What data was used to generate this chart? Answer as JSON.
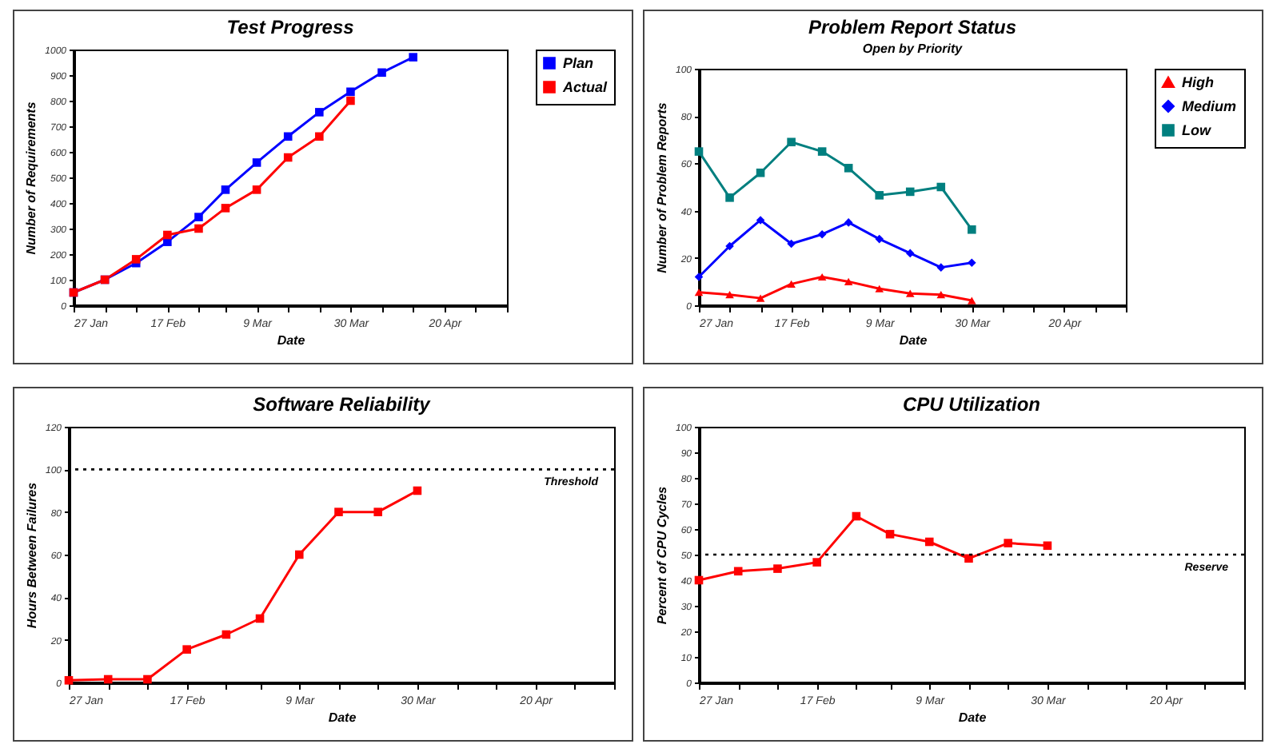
{
  "chart_data": [
    {
      "type": "line",
      "title": "Test Progress",
      "xlabel": "Date",
      "ylabel": "Number of Requirements",
      "legend": "right",
      "marker": "square",
      "x": [
        "--01-27",
        "--02-03",
        "--02-10",
        "--02-17",
        "--02-24",
        "--03-02",
        "--03-09",
        "--03-16",
        "--03-23",
        "--03-30",
        "--04-06",
        "--04-13"
      ],
      "xlim": [
        "--01-27",
        "--05-04"
      ],
      "xticks": [
        {
          "value": "--01-27",
          "label": "27 Jan"
        },
        {
          "value": "--02-03",
          "label": null
        },
        {
          "value": "--02-10",
          "label": null
        },
        {
          "value": "--02-17",
          "label": "17 Feb"
        },
        {
          "value": "--02-24",
          "label": null
        },
        {
          "value": "--03-02",
          "label": null
        },
        {
          "value": "--03-09",
          "label": "9 Mar"
        },
        {
          "value": "--03-16",
          "label": null
        },
        {
          "value": "--03-23",
          "label": null
        },
        {
          "value": "--03-30",
          "label": "30 Mar"
        },
        {
          "value": "--04-06",
          "label": null
        },
        {
          "value": "--04-13",
          "label": null
        },
        {
          "value": "--04-20",
          "label": "20 Apr"
        },
        {
          "value": "--04-27",
          "label": null
        },
        {
          "value": "--05-04",
          "label": null
        }
      ],
      "ylim": [
        0,
        1000
      ],
      "yticks": [
        0,
        100,
        200,
        300,
        400,
        500,
        600,
        700,
        800,
        900,
        1000
      ],
      "series": [
        {
          "name": "Plan",
          "color": "#0000ff",
          "values": [
            50,
            100,
            165,
            248,
            345,
            452,
            558,
            660,
            755,
            835,
            910,
            970
          ]
        },
        {
          "name": "Actual",
          "color": "#ff0000",
          "values": [
            50,
            100,
            180,
            275,
            300,
            380,
            452,
            578,
            660,
            800,
            null,
            null
          ]
        }
      ]
    },
    {
      "type": "line",
      "title": "Problem Report Status",
      "subtitle": "Open by Priority",
      "xlabel": "Date",
      "ylabel": "Number of Problem Reports",
      "legend": "right",
      "x": [
        "--01-27",
        "--02-03",
        "--02-10",
        "--02-17",
        "--02-24",
        "--03-02",
        "--03-09",
        "--03-16",
        "--03-23",
        "--03-30"
      ],
      "xlim": [
        "--01-27",
        "--05-04"
      ],
      "xticks": [
        {
          "value": "--01-27",
          "label": "27 Jan"
        },
        {
          "value": "--02-03",
          "label": null
        },
        {
          "value": "--02-10",
          "label": null
        },
        {
          "value": "--02-17",
          "label": "17 Feb"
        },
        {
          "value": "--02-24",
          "label": null
        },
        {
          "value": "--03-02",
          "label": null
        },
        {
          "value": "--03-09",
          "label": "9 Mar"
        },
        {
          "value": "--03-16",
          "label": null
        },
        {
          "value": "--03-23",
          "label": null
        },
        {
          "value": "--03-30",
          "label": "30 Mar"
        },
        {
          "value": "--04-06",
          "label": null
        },
        {
          "value": "--04-13",
          "label": null
        },
        {
          "value": "--04-20",
          "label": "20 Apr"
        },
        {
          "value": "--04-27",
          "label": null
        },
        {
          "value": "--05-04",
          "label": null
        }
      ],
      "ylim": [
        0,
        100
      ],
      "yticks": [
        0,
        20,
        40,
        60,
        80,
        100
      ],
      "series": [
        {
          "name": "High",
          "color": "#ff0000",
          "marker": "triangle",
          "values": [
            5.5,
            4.5,
            3,
            9,
            12,
            10,
            7,
            5,
            4.5,
            2
          ]
        },
        {
          "name": "Medium",
          "color": "#0000ff",
          "marker": "diamond",
          "values": [
            12,
            25,
            36,
            26,
            30,
            35,
            28,
            22,
            16,
            18
          ]
        },
        {
          "name": "Low",
          "color": "#007f7f",
          "marker": "square",
          "values": [
            65,
            45.5,
            56,
            69,
            65,
            58,
            46.5,
            48,
            50,
            32
          ]
        }
      ]
    },
    {
      "type": "line",
      "title": "Software Reliability",
      "xlabel": "Date",
      "ylabel": "Hours Between Failures",
      "marker": "square",
      "x": [
        "--01-27",
        "--02-03",
        "--02-10",
        "--02-17",
        "--02-24",
        "--03-02",
        "--03-09",
        "--03-16",
        "--03-23",
        "--03-30"
      ],
      "xlim": [
        "--01-27",
        "--05-04"
      ],
      "xticks": [
        {
          "value": "--01-27",
          "label": "27 Jan"
        },
        {
          "value": "--02-03",
          "label": null
        },
        {
          "value": "--02-10",
          "label": null
        },
        {
          "value": "--02-17",
          "label": "17 Feb"
        },
        {
          "value": "--02-24",
          "label": null
        },
        {
          "value": "--03-02",
          "label": null
        },
        {
          "value": "--03-09",
          "label": "9 Mar"
        },
        {
          "value": "--03-16",
          "label": null
        },
        {
          "value": "--03-23",
          "label": null
        },
        {
          "value": "--03-30",
          "label": "30 Mar"
        },
        {
          "value": "--04-06",
          "label": null
        },
        {
          "value": "--04-13",
          "label": null
        },
        {
          "value": "--04-20",
          "label": "20 Apr"
        },
        {
          "value": "--04-27",
          "label": null
        },
        {
          "value": "--05-04",
          "label": null
        }
      ],
      "ylim": [
        0,
        120
      ],
      "yticks": [
        0,
        20,
        40,
        60,
        80,
        100,
        120
      ],
      "ref_lines": [
        {
          "axis": "y",
          "value": 100,
          "label": "Threshold",
          "color": "#000000",
          "line_style": "dotted"
        }
      ],
      "series": [
        {
          "color": "#ff0000",
          "values": [
            1,
            1.5,
            1.5,
            15.5,
            22.5,
            30,
            60,
            80,
            80,
            90
          ]
        }
      ]
    },
    {
      "type": "line",
      "title": "CPU Utilization",
      "xlabel": "Date",
      "ylabel": "Percent of CPU Cycles",
      "marker": "square",
      "x": [
        "--01-27",
        "--02-03",
        "--02-10",
        "--02-17",
        "--02-24",
        "--03-02",
        "--03-09",
        "--03-16",
        "--03-23",
        "--03-30"
      ],
      "xlim": [
        "--01-27",
        "--05-04"
      ],
      "xticks": [
        {
          "value": "--01-27",
          "label": "27 Jan"
        },
        {
          "value": "--02-03",
          "label": null
        },
        {
          "value": "--02-10",
          "label": null
        },
        {
          "value": "--02-17",
          "label": "17 Feb"
        },
        {
          "value": "--02-24",
          "label": null
        },
        {
          "value": "--03-02",
          "label": null
        },
        {
          "value": "--03-09",
          "label": "9 Mar"
        },
        {
          "value": "--03-16",
          "label": null
        },
        {
          "value": "--03-23",
          "label": null
        },
        {
          "value": "--03-30",
          "label": "30 Mar"
        },
        {
          "value": "--04-06",
          "label": null
        },
        {
          "value": "--04-13",
          "label": null
        },
        {
          "value": "--04-20",
          "label": "20 Apr"
        },
        {
          "value": "--04-27",
          "label": null
        },
        {
          "value": "--05-04",
          "label": null
        }
      ],
      "ylim": [
        0,
        100
      ],
      "yticks": [
        0,
        10,
        20,
        30,
        40,
        50,
        60,
        70,
        80,
        90,
        100
      ],
      "ref_lines": [
        {
          "axis": "y",
          "value": 50,
          "label": "Reserve",
          "color": "#000000",
          "line_style": "dotted"
        }
      ],
      "series": [
        {
          "color": "#ff0000",
          "values": [
            40,
            43.5,
            44.5,
            47,
            65,
            58,
            55,
            48.5,
            54.5,
            53.5
          ]
        }
      ]
    }
  ]
}
